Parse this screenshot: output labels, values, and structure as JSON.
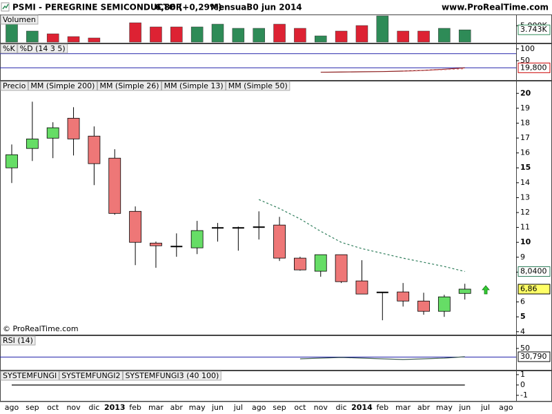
{
  "header": {
    "title": "PSMI - PEREGRINE SEMICONDUCTOR",
    "price": "6,86 (+0,29%)",
    "period": "Mensual",
    "date": "30 jun 2014",
    "site": "www.ProRealTime.com"
  },
  "copyright": "© ProRealTime.com",
  "chart_data": [
    {
      "type": "bar",
      "title": "Volumen",
      "values": [
        6316,
        3368,
        2526,
        1684,
        1263,
        null,
        5895,
        4632,
        4632,
        4632,
        5474,
        4211,
        4211,
        5474,
        4211,
        1895,
        3368,
        5053,
        8000,
        3368,
        3368,
        4211,
        3743,
        null,
        null
      ],
      "colors": [
        "#2e8b57",
        "#2e8b57",
        "#dd2233",
        "#dd2233",
        "#dd2233",
        null,
        "#dd2233",
        "#dd2233",
        "#dd2233",
        "#2e8b57",
        "#2e8b57",
        "#2e8b57",
        "#2e8b57",
        "#dd2233",
        "#dd2233",
        "#2e8b57",
        "#dd2233",
        "#dd2233",
        "#2e8b57",
        "#dd2233",
        "#dd2233",
        "#2e8b57",
        "#2e8b57",
        null,
        null
      ],
      "ylim": [
        0,
        8000
      ],
      "yticks": [
        {
          "value": 5000,
          "label": "5.000K"
        }
      ],
      "last_value": {
        "value": 3743,
        "label": "3.743K",
        "color": "#2e8b57"
      }
    },
    {
      "type": "line",
      "series": [
        {
          "name": "%K",
          "color": "#8b1a1a",
          "values": [
            null,
            null,
            null,
            null,
            null,
            null,
            null,
            null,
            null,
            null,
            null,
            null,
            null,
            null,
            null,
            1,
            2,
            3,
            4,
            6,
            9,
            14,
            19.8,
            null,
            null
          ],
          "last_value": {
            "value": 19.8,
            "label": "19,800",
            "color": "#cc0000"
          }
        },
        {
          "name": "%D (14 3 5)",
          "color": "#e08080",
          "dashed": true,
          "values": [
            null,
            null,
            null,
            null,
            null,
            null,
            null,
            null,
            null,
            null,
            null,
            null,
            null,
            null,
            null,
            null,
            null,
            null,
            null,
            5,
            8,
            12,
            16,
            null,
            null
          ]
        }
      ],
      "ylim": [
        -29,
        120
      ],
      "yticks": [
        100,
        50
      ],
      "levels": [
        80,
        20
      ],
      "level_color": "#2222aa"
    },
    {
      "type": "candlestick",
      "categories": [
        "ago",
        "sep",
        "oct",
        "nov",
        "dic",
        "2013",
        "feb",
        "mar",
        "abr",
        "may",
        "jun",
        "jul",
        "ago",
        "sep",
        "oct",
        "nov",
        "dic",
        "2014",
        "feb",
        "mar",
        "abr",
        "may",
        "jun",
        "jul",
        "ago"
      ],
      "series": [
        {
          "name": "Precio",
          "color": "#000000",
          "up_color": "#66dd66",
          "down_color": "#ee7777",
          "open": [
            15.0,
            16.3,
            16.99,
            18.33,
            17.13,
            15.65,
            12.08,
            9.95,
            9.72,
            9.63,
            10.95,
            10.95,
            10.99,
            11.16,
            8.94,
            8.06,
            9.17,
            7.41,
            6.62,
            6.67,
            6.06,
            5.37,
            6.57,
            null,
            null
          ],
          "high": [
            16.57,
            19.44,
            18.06,
            19.07,
            17.78,
            16.25,
            12.41,
            10.05,
            10.6,
            11.44,
            11.3,
            11.06,
            12.08,
            11.71,
            9.03,
            9.17,
            9.17,
            8.8,
            6.66,
            7.27,
            6.62,
            6.48,
            7.22,
            null,
            null
          ],
          "low": [
            13.98,
            15.46,
            15.65,
            15.83,
            13.84,
            11.85,
            8.47,
            8.29,
            9.03,
            9.21,
            10.05,
            9.44,
            10.19,
            8.75,
            8.1,
            7.69,
            7.27,
            6.53,
            4.77,
            5.69,
            5.14,
            5.0,
            6.16,
            null,
            null
          ],
          "close": [
            15.88,
            16.94,
            17.69,
            16.94,
            15.28,
            11.94,
            10.0,
            9.77,
            9.7,
            10.79,
            10.97,
            10.97,
            11.02,
            8.94,
            8.15,
            9.17,
            7.36,
            6.53,
            6.64,
            6.06,
            5.37,
            6.34,
            6.86,
            null,
            null
          ],
          "last_value": {
            "value": 6.86,
            "label": "6,86",
            "color": "#000000",
            "fill": "#ffff66"
          }
        },
        {
          "name": "MM (Simple 200)",
          "color": "#000000"
        },
        {
          "name": "MM (Simple 26)",
          "color": "#b22222"
        },
        {
          "name": "MM (Simple 13)",
          "color": "#2e7d5b",
          "dashed": true,
          "values": [
            null,
            null,
            null,
            null,
            null,
            null,
            null,
            null,
            null,
            null,
            null,
            null,
            12.87,
            12.27,
            11.57,
            10.74,
            10.0,
            9.58,
            9.26,
            8.94,
            8.66,
            8.38,
            8.04,
            null,
            null
          ],
          "last_value": {
            "value": 8.04,
            "label": "8,0400",
            "color": "#2e7d5b"
          }
        },
        {
          "name": "MM (Simple 50)",
          "color": "#ff9900"
        }
      ],
      "ylim": [
        3.85,
        20.8
      ],
      "yticks": [
        4,
        5,
        6,
        8,
        9,
        10,
        11,
        12,
        13,
        14,
        15,
        16,
        17,
        18,
        19,
        20
      ]
    },
    {
      "type": "line",
      "series": [
        {
          "name": "RSI (14)",
          "color": "#3d5a50",
          "values": [
            null,
            null,
            null,
            null,
            null,
            null,
            null,
            null,
            null,
            null,
            null,
            null,
            null,
            null,
            26,
            27.6,
            29.2,
            27.6,
            26,
            24.4,
            26,
            27.6,
            30.79,
            null,
            null
          ],
          "last_value": {
            "value": 30.79,
            "label": "30,790",
            "color": "#000000"
          }
        }
      ],
      "ylim": [
        2,
        78.8
      ],
      "yticks": [
        50
      ],
      "levels": [
        30
      ],
      "level_color": "#2222aa"
    },
    {
      "type": "line",
      "series": [
        {
          "name": "SYSTEMFUNGI",
          "color": "#000000",
          "values": [
            0,
            0,
            0,
            0,
            0,
            0,
            0,
            0,
            0,
            0,
            0,
            0,
            0,
            0,
            0,
            0,
            0,
            0,
            0,
            0,
            0,
            0,
            0,
            null,
            null
          ]
        },
        {
          "name": "SYSTEMFUNGI2",
          "color": "#e02020"
        },
        {
          "name": "SYSTEMFUNGI3 (40 100)",
          "color": "#2020c0"
        }
      ],
      "ylim": [
        -1.47,
        1.33
      ],
      "yticks": [
        1,
        0,
        -1
      ]
    }
  ]
}
